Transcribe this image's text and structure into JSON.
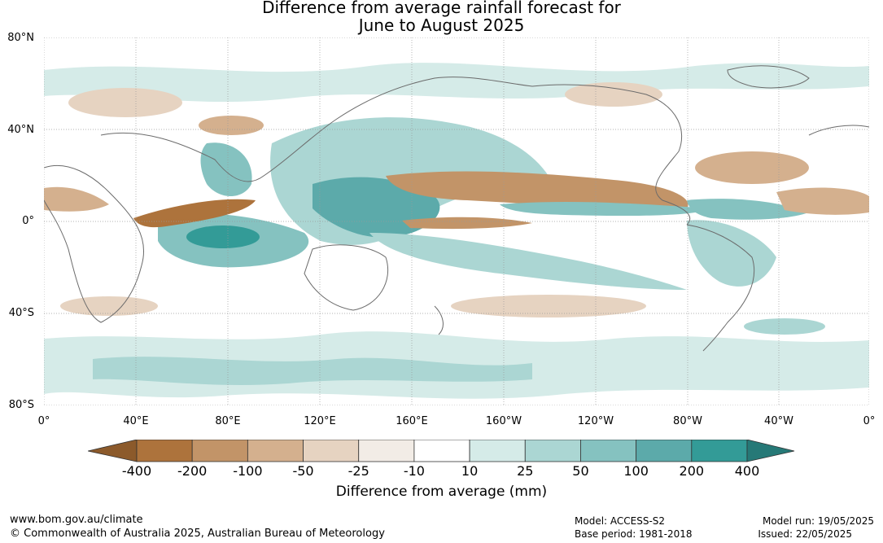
{
  "title_line1": "Difference from average rainfall forecast for",
  "title_line2": "June to August 2025",
  "latitude_labels": [
    "80°N",
    "40°N",
    "0°",
    "40°S",
    "80°S"
  ],
  "longitude_labels": [
    "0°",
    "40°E",
    "80°E",
    "120°E",
    "160°E",
    "160°W",
    "120°W",
    "80°W",
    "40°W",
    "0°"
  ],
  "colorbar": {
    "title": "Difference from average (mm)",
    "tick_labels": [
      "-400",
      "-200",
      "-100",
      "-50",
      "-25",
      "-10",
      "10",
      "25",
      "50",
      "100",
      "200",
      "400"
    ],
    "colors": [
      "#8c5a2b",
      "#ad733c",
      "#c29468",
      "#d4b08e",
      "#e6d3c1",
      "#f2ece6",
      "#ffffff",
      "#d5ebe8",
      "#abd6d3",
      "#85c2c0",
      "#5caaaa",
      "#339b97",
      "#267977"
    ]
  },
  "footer": {
    "website": "www.bom.gov.au/climate",
    "copyright": "© Commonwealth of Australia 2025, Australian Bureau of Meteorology",
    "model": "Model: ACCESS-S2",
    "base_period": "Base period: 1981-2018",
    "model_run": "Model run: 19/05/2025",
    "issued": "Issued: 22/05/2025"
  }
}
